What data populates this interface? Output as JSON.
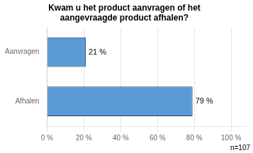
{
  "chart_data": {
    "type": "bar",
    "orientation": "horizontal",
    "title": "Kwam u het product aanvragen of het\naangevraagde product afhalen?",
    "categories": [
      "Afhalen",
      "Aanvragen"
    ],
    "values": [
      79,
      21
    ],
    "value_labels": [
      "79 %",
      "21 %"
    ],
    "data_labels": true,
    "color": "#5B9BD5",
    "xlim": [
      0,
      108
    ],
    "xticks": [
      {
        "value": 0,
        "label": "0 %"
      },
      {
        "value": 20,
        "label": "20 %"
      },
      {
        "value": 40,
        "label": "40 %"
      },
      {
        "value": 60,
        "label": "60 %"
      },
      {
        "value": 80,
        "label": "80 %"
      },
      {
        "value": 100,
        "label": "100 %"
      }
    ],
    "grid": true,
    "annotation": "n=107"
  }
}
